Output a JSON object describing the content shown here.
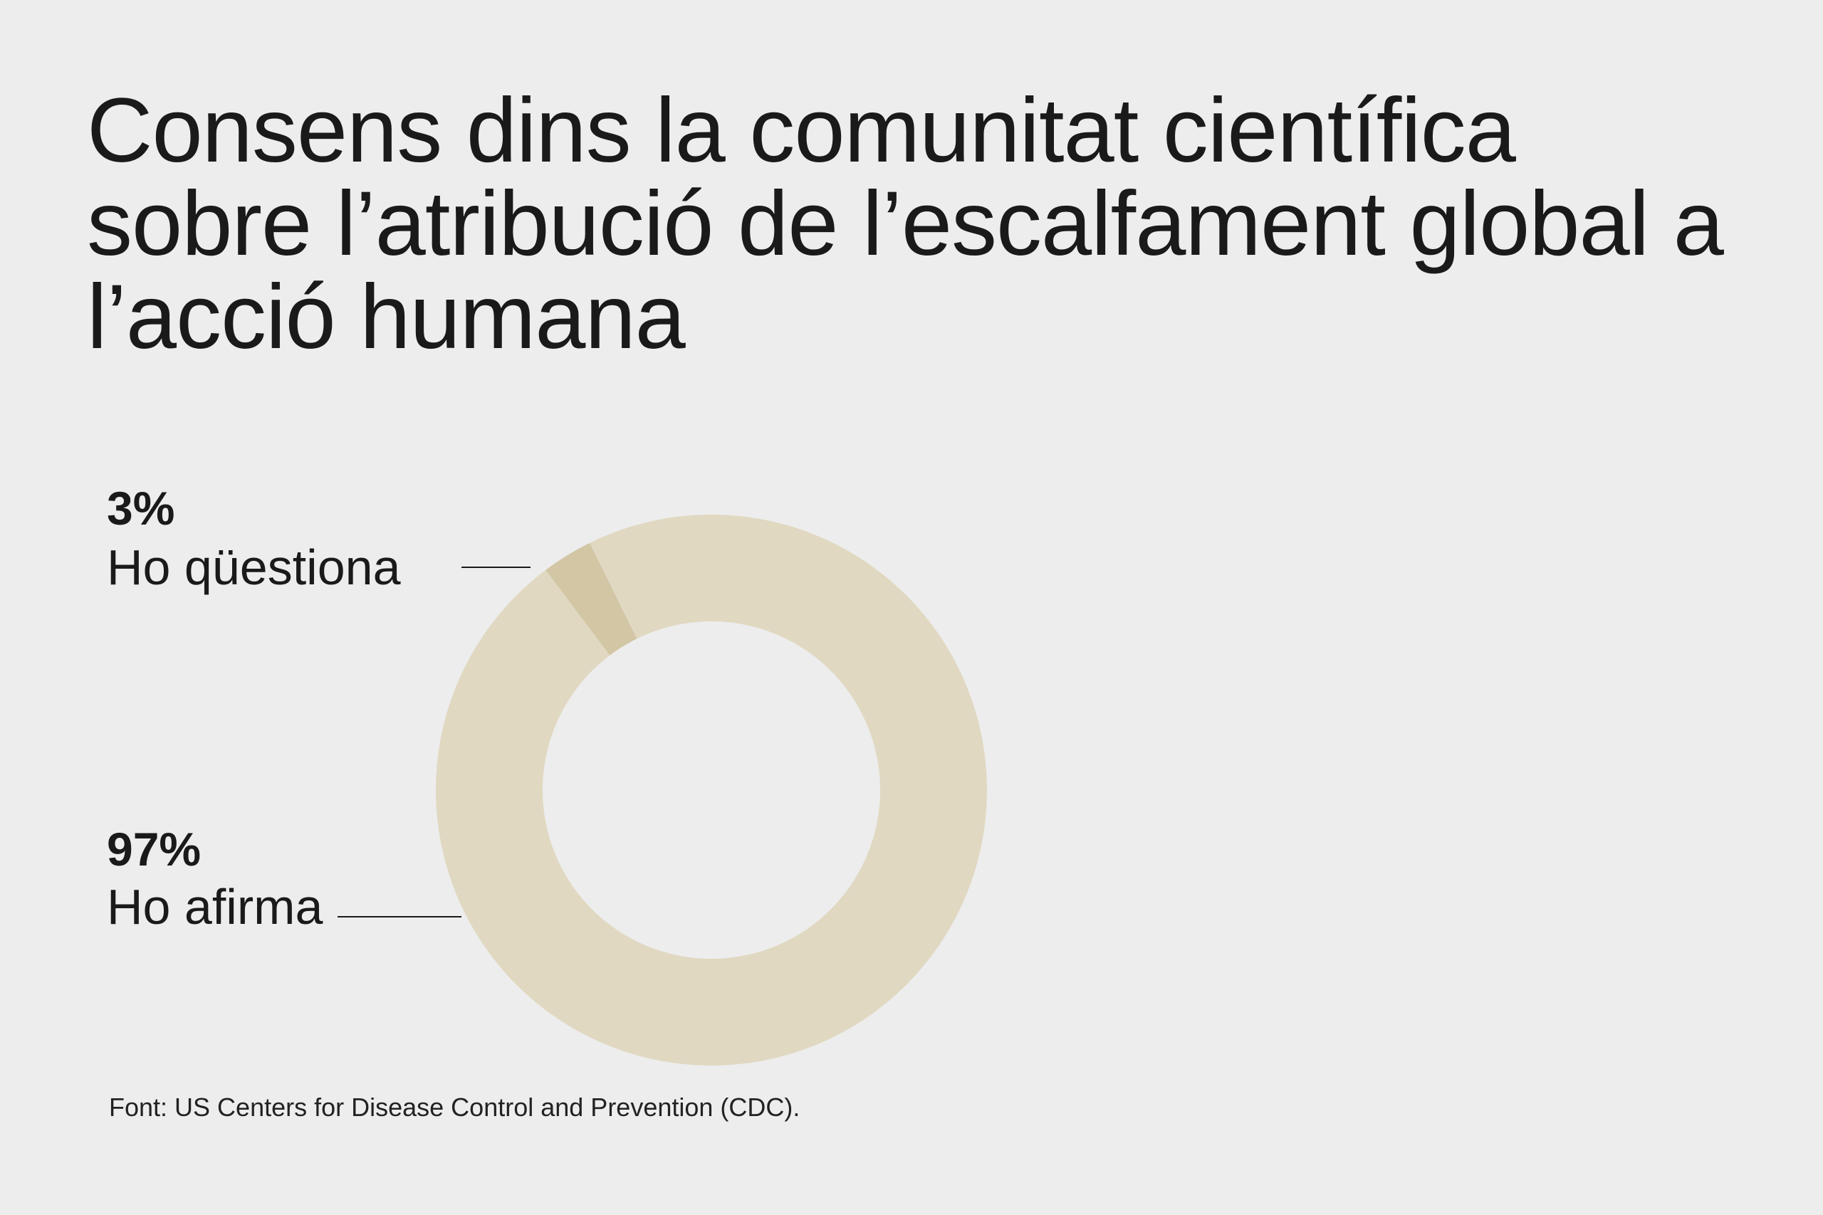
{
  "chart_data": {
    "type": "donut",
    "title": "Consens dins la comunitat científica sobre l’atribució de l’escalfament global a l’acció humana",
    "categories": [
      "Ho qüestiona",
      "Ho afirma"
    ],
    "values": [
      3,
      97
    ],
    "value_labels": [
      "3%",
      "97%"
    ],
    "colors": [
      "#d2c6a5",
      "#e0d8c1"
    ],
    "source": "Font: US Centers for Disease Control and Prevention (CDC)."
  }
}
